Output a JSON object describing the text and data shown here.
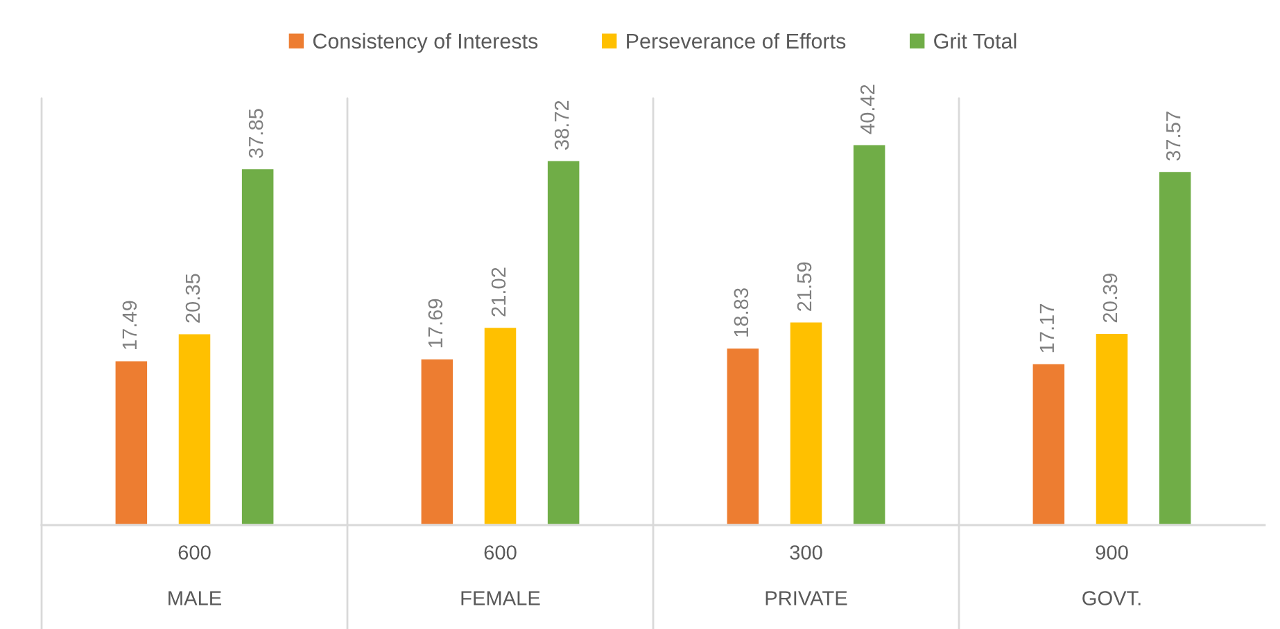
{
  "chart_data": {
    "type": "bar",
    "categories": [
      "600\nMALE",
      "600\nFEMALE",
      "300\nPRIVATE",
      "900\nGOVT."
    ],
    "series": [
      {
        "name": "Consistency of Interests",
        "color": "#ed7d31",
        "values": [
          17.49,
          17.69,
          18.83,
          17.17
        ]
      },
      {
        "name": "Perseverance of Efforts",
        "color": "#ffc000",
        "values": [
          20.35,
          21.02,
          21.59,
          20.39
        ]
      },
      {
        "name": "Grit Total",
        "color": "#70ad47",
        "values": [
          37.85,
          38.72,
          40.42,
          37.57
        ]
      }
    ],
    "data_labels": true,
    "legend": "top",
    "grid": "x"
  }
}
